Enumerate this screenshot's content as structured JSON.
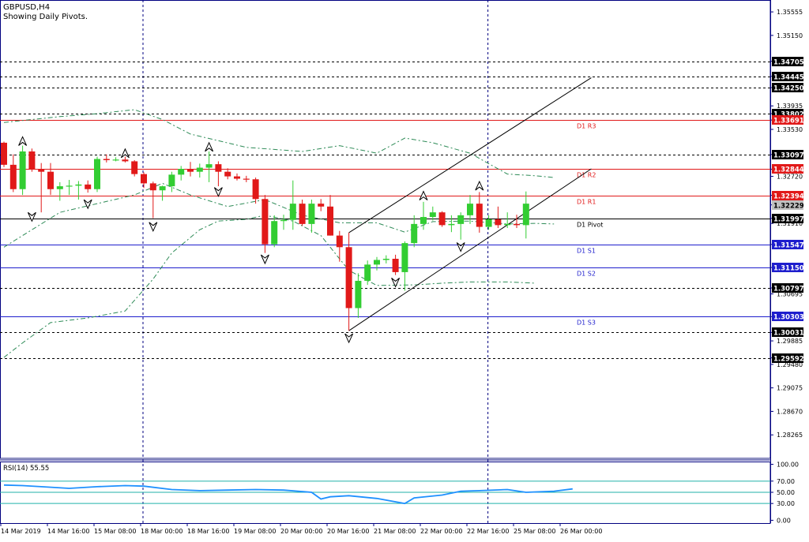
{
  "header": {
    "symbol": "GBPUSD,H4",
    "subtitle": "Showing Daily Pivots."
  },
  "colors": {
    "background": "#ffffff",
    "bull": "#32cd32",
    "bear": "#e11919",
    "pivot_resistance": "#e11919",
    "pivot_support": "#1e1ecd",
    "pivot_main": "#000000",
    "envelope": "#2e8b57",
    "rsi_line": "#1e90ff",
    "rsi_levels": "#20b2aa",
    "grid": "#000080",
    "axis": "#000080"
  },
  "chart_data": [
    {
      "type": "candlestick",
      "title": "GBPUSD,H4",
      "ylim": [
        1.2786,
        1.3576
      ],
      "y_ticks": [
        "1.35555",
        "1.35150",
        "1.34705",
        "1.34445",
        "1.34250",
        "1.33935",
        "1.33802",
        "1.33691",
        "1.33530",
        "1.33097",
        "1.32844",
        "1.32720",
        "1.32394",
        "1.32229",
        "1.31997",
        "1.31910",
        "1.31547",
        "1.31150",
        "1.30797",
        "1.30695",
        "1.30303",
        "1.30031",
        "1.29885",
        "1.29592",
        "1.29480",
        "1.29075",
        "1.28670",
        "1.28265"
      ],
      "x_labels": [
        {
          "bar": 0,
          "label": "14 Mar 2019"
        },
        {
          "bar": 5,
          "label": "14 Mar 16:00"
        },
        {
          "bar": 10,
          "label": "15 Mar 08:00"
        },
        {
          "bar": 15,
          "label": "18 Mar 00:00"
        },
        {
          "bar": 20,
          "label": "18 Mar 16:00"
        },
        {
          "bar": 25,
          "label": "19 Mar 08:00"
        },
        {
          "bar": 30,
          "label": "20 Mar 00:00"
        },
        {
          "bar": 35,
          "label": "20 Mar 16:00"
        },
        {
          "bar": 40,
          "label": "21 Mar 08:00"
        },
        {
          "bar": 45,
          "label": "22 Mar 00:00"
        },
        {
          "bar": 50,
          "label": "22 Mar 16:00"
        },
        {
          "bar": 55,
          "label": "25 Mar 08:00"
        },
        {
          "bar": 60,
          "label": "26 Mar 00:00"
        }
      ],
      "period_separators": [
        15,
        52
      ],
      "candles": [
        [
          1.333,
          1.3332,
          1.3288,
          1.3292
        ],
        [
          1.3292,
          1.331,
          1.3245,
          1.325
        ],
        [
          1.325,
          1.3325,
          1.324,
          1.3315
        ],
        [
          1.3315,
          1.332,
          1.328,
          1.3285
        ],
        [
          1.3285,
          1.3295,
          1.321,
          1.328
        ],
        [
          1.328,
          1.3295,
          1.324,
          1.325
        ],
        [
          1.325,
          1.3262,
          1.323,
          1.3255
        ],
        [
          1.3255,
          1.3266,
          1.324,
          1.3256
        ],
        [
          1.3256,
          1.3264,
          1.3232,
          1.3258
        ],
        [
          1.3258,
          1.3265,
          1.3244,
          1.325
        ],
        [
          1.325,
          1.3306,
          1.3245,
          1.3302
        ],
        [
          1.3302,
          1.331,
          1.3296,
          1.33
        ],
        [
          1.33,
          1.3305,
          1.3298,
          1.3301
        ],
        [
          1.3301,
          1.3306,
          1.3296,
          1.3298
        ],
        [
          1.3298,
          1.33,
          1.3272,
          1.3276
        ],
        [
          1.3276,
          1.3279,
          1.3252,
          1.326
        ],
        [
          1.326,
          1.3263,
          1.32,
          1.3248
        ],
        [
          1.3248,
          1.3256,
          1.323,
          1.3255
        ],
        [
          1.3255,
          1.328,
          1.3245,
          1.3275
        ],
        [
          1.3275,
          1.329,
          1.3265,
          1.3285
        ],
        [
          1.3285,
          1.3297,
          1.3272,
          1.328
        ],
        [
          1.328,
          1.3294,
          1.327,
          1.3287
        ],
        [
          1.3287,
          1.3315,
          1.3262,
          1.3293
        ],
        [
          1.3293,
          1.3298,
          1.3255,
          1.328
        ],
        [
          1.328,
          1.3286,
          1.3267,
          1.3272
        ],
        [
          1.3272,
          1.3277,
          1.3265,
          1.3268
        ],
        [
          1.3268,
          1.3273,
          1.3262,
          1.3267
        ],
        [
          1.3267,
          1.327,
          1.3225,
          1.3233
        ],
        [
          1.3233,
          1.324,
          1.314,
          1.3155
        ],
        [
          1.3155,
          1.3205,
          1.315,
          1.3195
        ],
        [
          1.3195,
          1.3206,
          1.318,
          1.3197
        ],
        [
          1.3197,
          1.3265,
          1.318,
          1.3225
        ],
        [
          1.3225,
          1.3232,
          1.3187,
          1.319
        ],
        [
          1.319,
          1.3232,
          1.3175,
          1.3225
        ],
        [
          1.3225,
          1.3233,
          1.3212,
          1.322
        ],
        [
          1.322,
          1.324,
          1.317,
          1.317
        ],
        [
          1.317,
          1.3178,
          1.3125,
          1.315
        ],
        [
          1.315,
          1.3175,
          1.3006,
          1.3045
        ],
        [
          1.3045,
          1.3105,
          1.3028,
          1.3092
        ],
        [
          1.3092,
          1.3127,
          1.3085,
          1.312
        ],
        [
          1.312,
          1.3133,
          1.311,
          1.3128
        ],
        [
          1.3128,
          1.3136,
          1.3122,
          1.313
        ],
        [
          1.313,
          1.3137,
          1.3102,
          1.3107
        ],
        [
          1.3107,
          1.316,
          1.3075,
          1.3157
        ],
        [
          1.3157,
          1.3205,
          1.315,
          1.319
        ],
        [
          1.319,
          1.3228,
          1.318,
          1.3202
        ],
        [
          1.3202,
          1.322,
          1.3196,
          1.321
        ],
        [
          1.321,
          1.3212,
          1.3185,
          1.3188
        ],
        [
          1.3188,
          1.3205,
          1.3176,
          1.319
        ],
        [
          1.319,
          1.321,
          1.3163,
          1.3205
        ],
        [
          1.3205,
          1.324,
          1.319,
          1.3225
        ],
        [
          1.3225,
          1.3245,
          1.3175,
          1.3185
        ],
        [
          1.3185,
          1.3205,
          1.318,
          1.3198
        ],
        [
          1.3198,
          1.322,
          1.3183,
          1.3188
        ],
        [
          1.3188,
          1.321,
          1.3183,
          1.319
        ],
        [
          1.319,
          1.3206,
          1.3183,
          1.3188
        ],
        [
          1.3188,
          1.3246,
          1.3165,
          1.3225
        ]
      ],
      "pivots": [
        {
          "label": "D1 R3",
          "value": 1.33691,
          "kind": "resistance"
        },
        {
          "label": "D1 R2",
          "value": 1.32844,
          "kind": "resistance"
        },
        {
          "label": "D1 R1",
          "value": 1.32394,
          "kind": "resistance"
        },
        {
          "label": "D1 Pivot",
          "value": 1.31997,
          "kind": "pivot"
        },
        {
          "label": "D1 S1",
          "value": 1.31547,
          "kind": "support"
        },
        {
          "label": "D1 S2",
          "value": 1.3115,
          "kind": "support"
        },
        {
          "label": "D1 S3",
          "value": 1.30303,
          "kind": "support"
        }
      ],
      "price_boxes": [
        {
          "value": 1.34705,
          "style": "dark"
        },
        {
          "value": 1.34445,
          "style": "dark"
        },
        {
          "value": 1.3425,
          "style": "dark"
        },
        {
          "value": 1.33802,
          "style": "dark"
        },
        {
          "value": 1.33691,
          "style": "red"
        },
        {
          "value": 1.33097,
          "style": "dark"
        },
        {
          "value": 1.32844,
          "style": "red"
        },
        {
          "value": 1.32394,
          "style": "red"
        },
        {
          "value": 1.32229,
          "style": "gray"
        },
        {
          "value": 1.31997,
          "style": "dark"
        },
        {
          "value": 1.31547,
          "style": "blue"
        },
        {
          "value": 1.3115,
          "style": "blue"
        },
        {
          "value": 1.30797,
          "style": "dark"
        },
        {
          "value": 1.30303,
          "style": "blue"
        },
        {
          "value": 1.30031,
          "style": "dark"
        },
        {
          "value": 1.29592,
          "style": "dark"
        }
      ],
      "dotted_levels": [
        1.34705,
        1.34445,
        1.3425,
        1.33802,
        1.33097,
        1.30797,
        1.30031,
        1.29592
      ],
      "envelope_upper": [
        [
          0,
          1.3365
        ],
        [
          6,
          1.3375
        ],
        [
          10,
          1.338
        ],
        [
          14,
          1.3387
        ],
        [
          17,
          1.337
        ],
        [
          20,
          1.3345
        ],
        [
          26,
          1.3322
        ],
        [
          32,
          1.3315
        ],
        [
          36,
          1.3325
        ],
        [
          40,
          1.3312
        ],
        [
          43,
          1.3338
        ],
        [
          46,
          1.333
        ],
        [
          50,
          1.3312
        ],
        [
          54,
          1.3276
        ],
        [
          57,
          1.3273
        ],
        [
          59,
          1.327
        ]
      ],
      "envelope_lower": [
        [
          0,
          1.315
        ],
        [
          3,
          1.318
        ],
        [
          6,
          1.321
        ],
        [
          10,
          1.3225
        ],
        [
          14,
          1.324
        ],
        [
          17,
          1.326
        ],
        [
          20,
          1.324
        ],
        [
          24,
          1.322
        ],
        [
          28,
          1.3232
        ],
        [
          32,
          1.3205
        ],
        [
          36,
          1.3192
        ],
        [
          40,
          1.3192
        ],
        [
          43,
          1.3176
        ],
        [
          46,
          1.3194
        ],
        [
          50,
          1.3195
        ],
        [
          54,
          1.319
        ],
        [
          57,
          1.3191
        ],
        [
          59,
          1.319
        ]
      ],
      "envelope_lower_tail": [
        [
          0,
          1.296
        ],
        [
          2,
          1.2985
        ],
        [
          5,
          1.302
        ],
        [
          9,
          1.3028
        ],
        [
          13,
          1.304
        ],
        [
          16,
          1.3095
        ],
        [
          18,
          1.314
        ],
        [
          21,
          1.318
        ],
        [
          23,
          1.3195
        ],
        [
          26,
          1.3198
        ],
        [
          28,
          1.3205
        ],
        [
          31,
          1.3195
        ],
        [
          34,
          1.317
        ],
        [
          37,
          1.311
        ],
        [
          40,
          1.3084
        ],
        [
          44,
          1.3085
        ],
        [
          47,
          1.3088
        ],
        [
          50,
          1.309
        ],
        [
          54,
          1.309
        ],
        [
          57,
          1.3088
        ]
      ],
      "fractals": [
        {
          "bar": 2,
          "value": 1.3332,
          "dir": "up"
        },
        {
          "bar": 3,
          "value": 1.3203,
          "dir": "down"
        },
        {
          "bar": 9,
          "value": 1.3225,
          "dir": "down"
        },
        {
          "bar": 13,
          "value": 1.3311,
          "dir": "up"
        },
        {
          "bar": 16,
          "value": 1.3186,
          "dir": "down"
        },
        {
          "bar": 22,
          "value": 1.3322,
          "dir": "up"
        },
        {
          "bar": 23,
          "value": 1.3246,
          "dir": "down"
        },
        {
          "bar": 28,
          "value": 1.313,
          "dir": "down"
        },
        {
          "bar": 37,
          "value": 1.2994,
          "dir": "down"
        },
        {
          "bar": 42,
          "value": 1.309,
          "dir": "down"
        },
        {
          "bar": 45,
          "value": 1.3238,
          "dir": "up"
        },
        {
          "bar": 49,
          "value": 1.3151,
          "dir": "down"
        },
        {
          "bar": 51,
          "value": 1.3255,
          "dir": "up"
        }
      ],
      "channel": {
        "lower": [
          [
            37,
            1.3006
          ],
          [
            63,
            1.3285
          ]
        ],
        "upper": [
          [
            37,
            1.3175
          ],
          [
            63,
            1.3442
          ]
        ]
      }
    },
    {
      "type": "line",
      "title": "RSI(14) 55.55",
      "ylim": [
        -5,
        105
      ],
      "y_ticks": [
        "100.00",
        "70.00",
        "50.00",
        "30.00",
        "0.00"
      ],
      "levels": [
        70,
        50,
        30
      ],
      "values": [
        [
          0,
          63
        ],
        [
          2,
          62
        ],
        [
          4,
          60
        ],
        [
          7,
          57
        ],
        [
          10,
          60
        ],
        [
          13,
          62
        ],
        [
          15,
          61
        ],
        [
          18,
          55
        ],
        [
          21,
          53
        ],
        [
          24,
          54
        ],
        [
          27,
          55
        ],
        [
          30,
          54
        ],
        [
          33,
          50
        ],
        [
          34,
          38
        ],
        [
          35,
          42
        ],
        [
          37,
          44
        ],
        [
          40,
          39
        ],
        [
          43,
          30
        ],
        [
          44,
          40
        ],
        [
          47,
          45
        ],
        [
          49,
          52
        ],
        [
          51,
          53
        ],
        [
          54,
          55
        ],
        [
          56,
          50
        ],
        [
          59,
          52
        ],
        [
          61,
          56
        ]
      ]
    }
  ]
}
